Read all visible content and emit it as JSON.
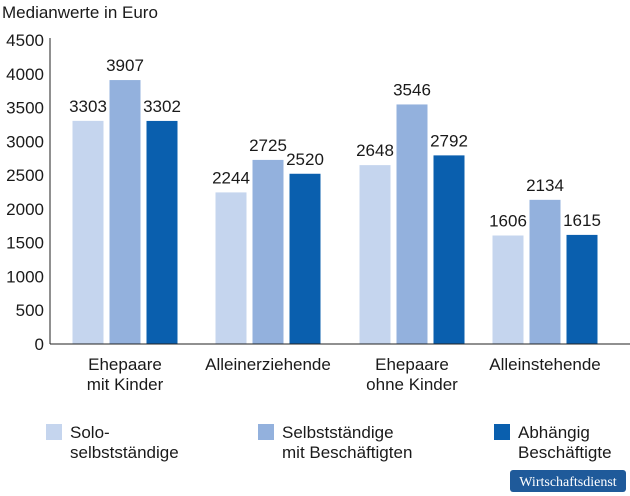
{
  "chart_data": {
    "type": "bar",
    "title": "",
    "unit_label": "Medianwerte in Euro",
    "xlabel": "",
    "ylabel": "",
    "ylim": [
      0,
      4500
    ],
    "yticks": [
      0,
      500,
      1000,
      1500,
      2000,
      2500,
      3000,
      3500,
      4000,
      4500
    ],
    "grid": false,
    "legend_position": "bottom",
    "categories": [
      [
        "Ehepaare",
        "mit Kinder"
      ],
      [
        "Alleinerziehende"
      ],
      [
        "Ehepaare",
        "ohne Kinder"
      ],
      [
        "Alleinstehende"
      ]
    ],
    "series": [
      {
        "name": [
          "Solo-",
          "selbstständige"
        ],
        "color": "#c5d5ee",
        "values": [
          3303,
          2244,
          2648,
          1606
        ]
      },
      {
        "name": [
          "Selbstständige",
          "mit Beschäftigten"
        ],
        "color": "#93b1dd",
        "values": [
          3907,
          2725,
          3546,
          2134
        ]
      },
      {
        "name": [
          "Abhängig",
          "Beschäftigte"
        ],
        "color": "#0a5fae",
        "values": [
          3302,
          2520,
          2792,
          1615
        ]
      }
    ]
  },
  "badge": {
    "text": "Wirtschaftsdienst",
    "color": "#1f5a9a"
  }
}
